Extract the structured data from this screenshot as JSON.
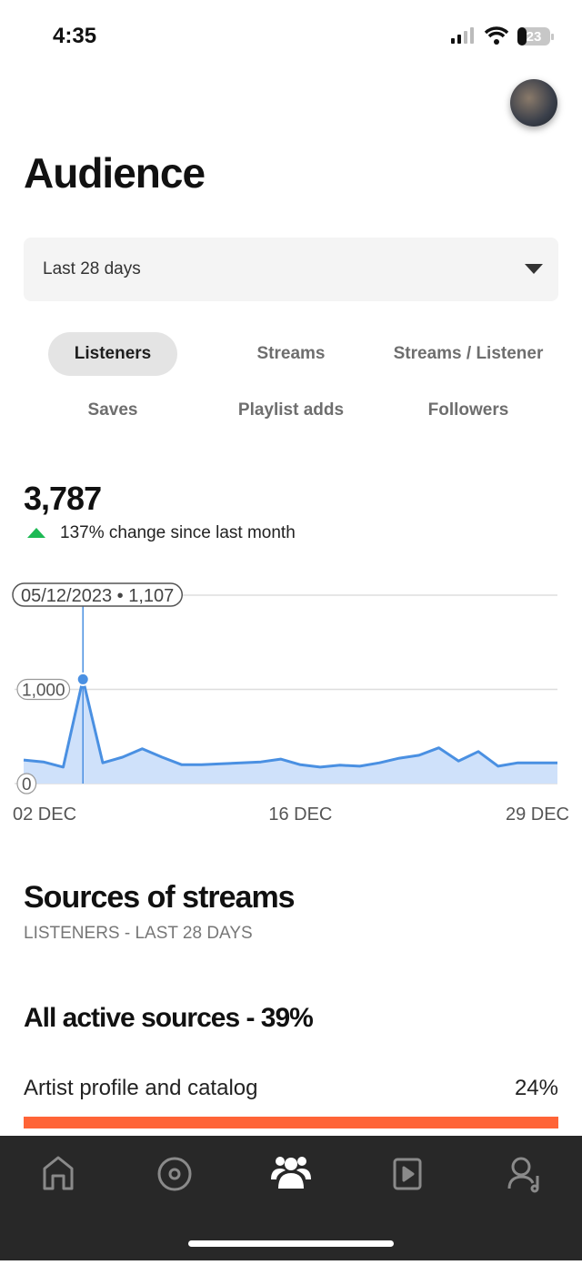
{
  "status_bar": {
    "time": "4:35",
    "battery": "23"
  },
  "header": {
    "title": "Audience"
  },
  "period_select": {
    "label": "Last 28 days"
  },
  "tabs": [
    "Listeners",
    "Streams",
    "Streams / Listener",
    "Saves",
    "Playlist adds",
    "Followers"
  ],
  "summary": {
    "total": "3,787",
    "change": "137% change since last month"
  },
  "chart_data": {
    "type": "line",
    "categories": [
      "02 DEC",
      null,
      null,
      null,
      null,
      null,
      null,
      null,
      null,
      null,
      null,
      null,
      null,
      null,
      "16 DEC",
      null,
      null,
      null,
      null,
      null,
      null,
      null,
      null,
      null,
      null,
      null,
      null,
      "29 DEC"
    ],
    "values": [
      250,
      230,
      175,
      1107,
      220,
      280,
      370,
      280,
      200,
      200,
      210,
      220,
      230,
      260,
      200,
      175,
      195,
      185,
      220,
      270,
      300,
      380,
      240,
      340,
      185,
      220,
      220,
      220
    ],
    "color": "#4a90e2",
    "annotation": "05/12/2023 • 1,107",
    "ylim": [
      0,
      2000
    ],
    "yticks": [
      0,
      {
        "value": 1000,
        "label": "1,000"
      }
    ],
    "grid": true
  },
  "sources": {
    "title": "Sources of streams",
    "subtitle": "LISTENERS - LAST 28 DAYS",
    "heading": "All active sources - 39%",
    "rows": [
      {
        "label": "Artist profile and catalog",
        "value": "24%"
      }
    ]
  }
}
